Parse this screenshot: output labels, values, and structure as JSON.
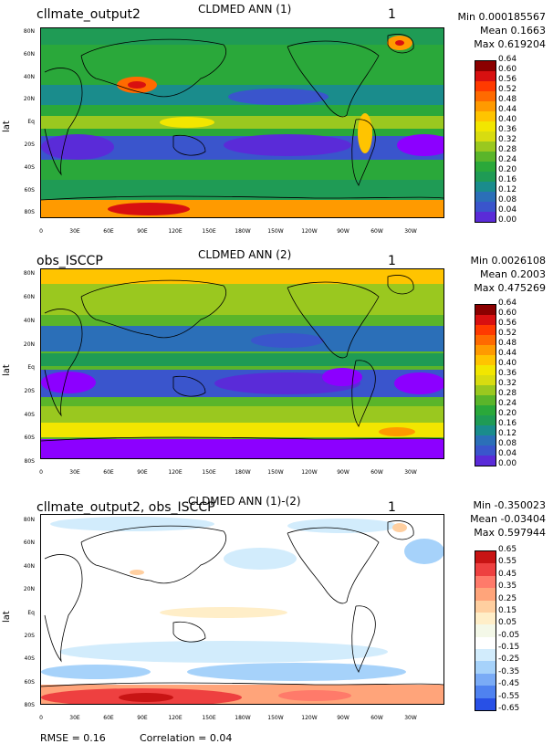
{
  "colors": {
    "main_levels": [
      "#8c00ff",
      "#5a2bd8",
      "#3a55cc",
      "#2b6fb8",
      "#1a8c8c",
      "#1f9b55",
      "#2aa83a",
      "#5ab52a",
      "#9ac81f",
      "#d8dc10",
      "#f2e600",
      "#ffc400",
      "#ff9a00",
      "#ff6a00",
      "#ff3a00",
      "#d81010",
      "#8b0000"
    ],
    "diff_levels": [
      "#0000c8",
      "#2850e6",
      "#4f82f0",
      "#7aabf6",
      "#a6d2fa",
      "#d2ecfc",
      "#ffffff",
      "#f4f8e8",
      "#ffeec8",
      "#ffcfa0",
      "#ffa47a",
      "#ff7a6a",
      "#ee4040",
      "#c81414"
    ]
  },
  "panels": [
    {
      "label": "cllmate_output2",
      "title": "CLDMED ANN (1)",
      "number": "1",
      "stats": {
        "min": "Min 0.000185567",
        "mean": "Mean 0.1663",
        "max": "Max 0.619204"
      }
    },
    {
      "label": "obs_ISCCP",
      "title": "CLDMED ANN (2)",
      "number": "1",
      "stats": {
        "min": "Min 0.0026108",
        "mean": "Mean 0.2003",
        "max": "Max 0.475269"
      }
    },
    {
      "label": "cllmate_output2, obs_ISCCP",
      "title": "CLDMED ANN (1)-(2)",
      "number": "1",
      "stats": {
        "min": "Min -0.350023",
        "mean": "Mean -0.03404",
        "max": "Max 0.597944"
      }
    }
  ],
  "footer": {
    "rmse": "RMSE = 0.16",
    "correlation": "Correlation = 0.04"
  },
  "chart_data": [
    {
      "type": "heatmap",
      "title": "CLDMED ANN (1)",
      "subtitle": "cllmate_output2",
      "ylabel": "lat",
      "x_ticks": [
        "0",
        "30E",
        "60E",
        "90E",
        "120E",
        "150E",
        "180W",
        "150W",
        "120W",
        "90W",
        "60W",
        "30W"
      ],
      "y_ticks": [
        "80N",
        "60N",
        "40N",
        "20N",
        "Eq",
        "20S",
        "40S",
        "60S",
        "80S"
      ],
      "colorbar": [
        "0.64",
        "0.60",
        "0.56",
        "0.52",
        "0.48",
        "0.44",
        "0.40",
        "0.36",
        "0.32",
        "0.28",
        "0.24",
        "0.20",
        "0.16",
        "0.12",
        "0.08",
        "0.04",
        "0.00"
      ],
      "stats": {
        "min": 0.000185567,
        "mean": 0.1663,
        "max": 0.619204
      }
    },
    {
      "type": "heatmap",
      "title": "CLDMED ANN (2)",
      "subtitle": "obs_ISCCP",
      "ylabel": "lat",
      "x_ticks": [
        "0",
        "30E",
        "60E",
        "90E",
        "120E",
        "150E",
        "180W",
        "150W",
        "120W",
        "90W",
        "60W",
        "30W"
      ],
      "y_ticks": [
        "80N",
        "60N",
        "40N",
        "20N",
        "Eq",
        "20S",
        "40S",
        "60S",
        "80S"
      ],
      "colorbar": [
        "0.64",
        "0.60",
        "0.56",
        "0.52",
        "0.48",
        "0.44",
        "0.40",
        "0.36",
        "0.32",
        "0.28",
        "0.24",
        "0.20",
        "0.16",
        "0.12",
        "0.08",
        "0.04",
        "0.00"
      ],
      "stats": {
        "min": 0.0026108,
        "mean": 0.2003,
        "max": 0.475269
      }
    },
    {
      "type": "heatmap",
      "title": "CLDMED ANN (1)-(2)",
      "subtitle": "cllmate_output2, obs_ISCCP",
      "ylabel": "lat",
      "x_ticks": [
        "0",
        "30E",
        "60E",
        "90E",
        "120E",
        "150E",
        "180W",
        "150W",
        "120W",
        "90W",
        "60W",
        "30W"
      ],
      "y_ticks": [
        "80N",
        "60N",
        "40N",
        "20N",
        "Eq",
        "20S",
        "40S",
        "60S",
        "80S"
      ],
      "colorbar": [
        "0.65",
        "0.55",
        "0.45",
        "0.35",
        "0.25",
        "0.15",
        "0.05",
        "-0.05",
        "-0.15",
        "-0.25",
        "-0.35",
        "-0.45",
        "-0.55",
        "-0.65"
      ],
      "stats": {
        "min": -0.350023,
        "mean": -0.03404,
        "max": 0.597944,
        "rmse": 0.16,
        "correlation": 0.04
      }
    }
  ]
}
